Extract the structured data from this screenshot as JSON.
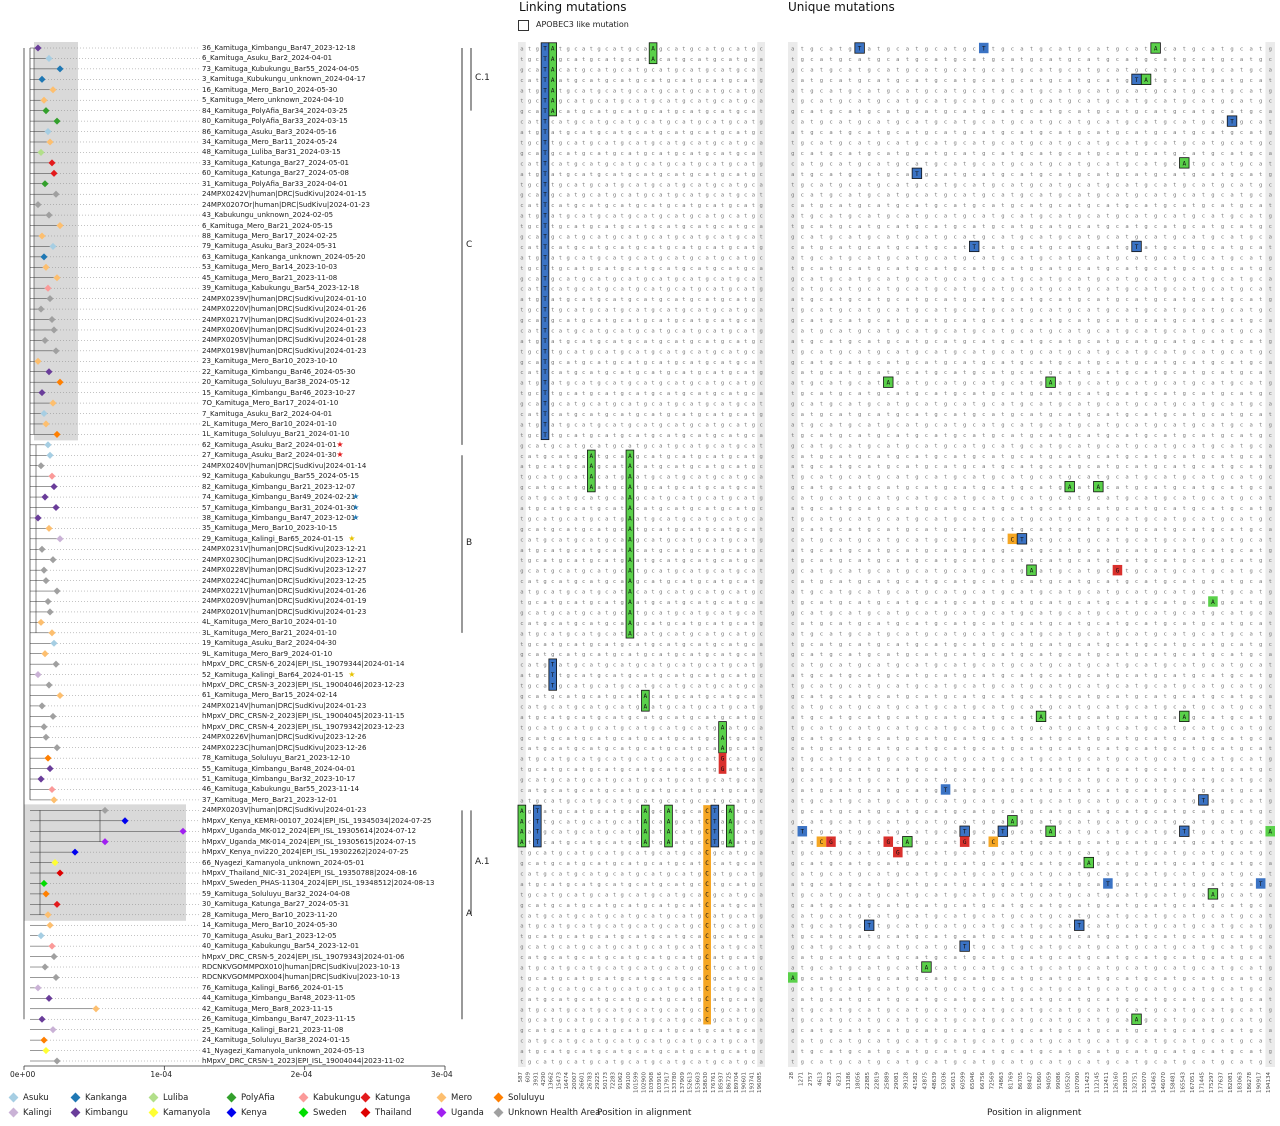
{
  "panels": {
    "linking_title": "Linking mutations",
    "unique_title": "Unique mutations",
    "xlabel_linking": "Position in alignment",
    "xlabel_unique": "Position in alignment",
    "apobec_label": "APOBEC3 like mutation"
  },
  "tree_axis": {
    "ticks": [
      "0e+00",
      "1e-04",
      "2e-04",
      "3e-04"
    ]
  },
  "clades": [
    {
      "label": "C.1",
      "from": 0,
      "to": 6
    },
    {
      "label": "C",
      "from": 0,
      "to": 38
    },
    {
      "label": "B",
      "from": 39,
      "to": 56
    },
    {
      "label": "A.1",
      "from": 73,
      "to": 83
    },
    {
      "label": "A",
      "from": 73,
      "to": 93
    }
  ],
  "leaves": [
    {
      "name": "36_Kamituga_Kimbangu_Bar47_2023-12-18",
      "region": "Kimbangu"
    },
    {
      "name": "6_Kamituga_Asuku_Bar2_2024-04-01",
      "region": "Asuku"
    },
    {
      "name": "73_Kamituga_Kubukungu_Bar55_2024-04-05",
      "region": "Kankanga"
    },
    {
      "name": "3_Kamituga_Kubukungu_unknown_2024-04-17",
      "region": "Kankanga"
    },
    {
      "name": "16_Kamituga_Mero_Bar10_2024-05-30",
      "region": "Mero"
    },
    {
      "name": "5_Kamituga_Mero_unknown_2024-04-10",
      "region": "Mero"
    },
    {
      "name": "84_Kamituga_PolyAfia_Bar34_2024-03-25",
      "region": "PolyAfia"
    },
    {
      "name": "80_Kamituga_PolyAfia_Bar33_2024-03-15",
      "region": "PolyAfia"
    },
    {
      "name": "86_Kamituga_Asuku_Bar3_2024-05-16",
      "region": "Asuku"
    },
    {
      "name": "34_Kamituga_Mero_Bar11_2024-05-24",
      "region": "Mero"
    },
    {
      "name": "48_Kamituga_Luliba_Bar31_2024-03-15",
      "region": "Luliba"
    },
    {
      "name": "33_Kamituga_Katunga_Bar27_2024-05-01",
      "region": "Katunga"
    },
    {
      "name": "60_Kamituga_Katunga_Bar27_2024-05-08",
      "region": "Katunga"
    },
    {
      "name": "31_Kamituga_PolyAfia_Bar33_2024-04-01",
      "region": "PolyAfia"
    },
    {
      "name": "24MPX0242V|human|DRC|SudKivu|2024-01-15",
      "region": "Unknown Health Area"
    },
    {
      "name": "24MPX0207Or|human|DRC|SudKivu|2024-01-23",
      "region": "Unknown Health Area"
    },
    {
      "name": "43_Kabukungu_unknown_2024-02-05",
      "region": "Unknown Health Area"
    },
    {
      "name": "6_Kamituga_Mero_Bar21_2024-05-15",
      "region": "Mero"
    },
    {
      "name": "88_Kamituga_Mero_Bar17_2024-02-25",
      "region": "Mero"
    },
    {
      "name": "79_Kamituga_Asuku_Bar3_2024-05-31",
      "region": "Asuku"
    },
    {
      "name": "63_Kamituga_Kankanga_unknown_2024-05-20",
      "region": "Kankanga"
    },
    {
      "name": "53_Kamituga_Mero_Bar14_2023-10-03",
      "region": "Mero"
    },
    {
      "name": "45_Kamituga_Mero_Bar21_2023-11-08",
      "region": "Mero"
    },
    {
      "name": "39_Kamituga_Kabukungu_Bar54_2023-12-18",
      "region": "Kabukungu"
    },
    {
      "name": "24MPX0239V|human|DRC|SudKivu|2024-01-10",
      "region": "Unknown Health Area"
    },
    {
      "name": "24MPX0220V|human|DRC|SudKivu|2024-01-26",
      "region": "Unknown Health Area"
    },
    {
      "name": "24MPX0217V|human|DRC|SudKivu|2024-01-23",
      "region": "Unknown Health Area"
    },
    {
      "name": "24MPX0206V|human|DRC|SudKivu|2024-01-23",
      "region": "Unknown Health Area"
    },
    {
      "name": "24MPX0205V|human|DRC|SudKivu|2024-01-28",
      "region": "Unknown Health Area"
    },
    {
      "name": "24MPX0198V|human|DRC|SudKivu|2024-01-23",
      "region": "Unknown Health Area"
    },
    {
      "name": "23_Kamituga_Mero_Bar10_2023-10-10",
      "region": "Mero"
    },
    {
      "name": "22_Kamituga_Kimbangu_Bar46_2024-05-30",
      "region": "Kimbangu"
    },
    {
      "name": "20_Kamituga_Soluluyu_Bar38_2024-05-12",
      "region": "Soluluyu"
    },
    {
      "name": "15_Kamituga_Kimbangu_Bar46_2023-10-27",
      "region": "Kimbangu"
    },
    {
      "name": "7O_Kamituga_Mero_Bar17_2024-01-10",
      "region": "Mero"
    },
    {
      "name": "7_Kamituga_Asuku_Bar2_2024-04-01",
      "region": "Asuku"
    },
    {
      "name": "2L_Kamituga_Mero_Bar10_2024-01-10",
      "region": "Mero"
    },
    {
      "name": "1L_Kamituga_Soluluyu_Bar21_2024-01-10",
      "region": "Soluluyu"
    },
    {
      "name": "62_Kamituga_Asuku_Bar2_2024-01-01",
      "region": "Asuku",
      "star": "red"
    },
    {
      "name": "27_Kamituga_Asuku_Bar2_2024-01-30",
      "region": "Asuku",
      "star": "red"
    },
    {
      "name": "24MPX0240V|human|DRC|SudKivu|2024-01-14",
      "region": "Unknown Health Area"
    },
    {
      "name": "92_Kamituga_Kabukungu_Bar55_2024-05-15",
      "region": "Kabukungu"
    },
    {
      "name": "82_Kamituga_Kimbangu_Bar21_2023-12-07",
      "region": "Kimbangu"
    },
    {
      "name": "74_Kamituga_Kimbangu_Bar49_2024-02-21",
      "region": "Kimbangu",
      "star": "blue"
    },
    {
      "name": "57_Kamituga_Kimbangu_Bar31_2024-01-30",
      "region": "Kimbangu",
      "star": "blue"
    },
    {
      "name": "38_Kamituga_Kimbangu_Bar47_2023-12-01",
      "region": "Kimbangu",
      "star": "blue"
    },
    {
      "name": "35_Kamituga_Mero_Bar10_2023-10-15",
      "region": "Mero"
    },
    {
      "name": "29_Kamituga_Kalingi_Bar65_2024-01-15",
      "region": "Kalingi",
      "star": "yellow"
    },
    {
      "name": "24MPX0231V|human|DRC|SudKivu|2023-12-21",
      "region": "Unknown Health Area"
    },
    {
      "name": "24MPX0230C|human|DRC|SudKivu|2023-12-21",
      "region": "Unknown Health Area"
    },
    {
      "name": "24MPX0228V|human|DRC|SudKivu|2023-12-27",
      "region": "Unknown Health Area"
    },
    {
      "name": "24MPX0224C|human|DRC|SudKivu|2023-12-25",
      "region": "Unknown Health Area"
    },
    {
      "name": "24MPX0221V|human|DRC|SudKivu|2024-01-26",
      "region": "Unknown Health Area"
    },
    {
      "name": "24MPX0209V|human|DRC|SudKivu|2024-01-19",
      "region": "Unknown Health Area"
    },
    {
      "name": "24MPX0201V|human|DRC|SudKivu|2024-01-23",
      "region": "Unknown Health Area"
    },
    {
      "name": "4L_Kamituga_Mero_Bar10_2024-01-10",
      "region": "Mero"
    },
    {
      "name": "3L_Kamituga_Mero_Bar21_2024-01-10",
      "region": "Mero"
    },
    {
      "name": "19_Kamituga_Asuku_Bar2_2024-04-30",
      "region": "Asuku"
    },
    {
      "name": "9L_Kamituga_Mero_Bar9_2024-01-10",
      "region": "Mero"
    },
    {
      "name": "hMpxV_DRC_CRSN-6_2024|EPI_ISL_19079344|2024-01-14",
      "region": "Unknown Health Area"
    },
    {
      "name": "52_Kamituga_Kalingi_Bar64_2024-01-15",
      "region": "Kalingi",
      "star": "yellow"
    },
    {
      "name": "hMpxV_DRC_CRSN-3_2023|EPI_ISL_19004046|2023-12-23",
      "region": "Unknown Health Area"
    },
    {
      "name": "61_Kamituga_Mero_Bar15_2024-02-14",
      "region": "Mero"
    },
    {
      "name": "24MPX0214V|human|DRC|SudKivu|2024-01-23",
      "region": "Unknown Health Area"
    },
    {
      "name": "hMpxV_DRC_CRSN-2_2023|EPI_ISL_19004045|2023-11-15",
      "region": "Unknown Health Area"
    },
    {
      "name": "hMpxV_DRC_CRSN-4_2023|EPI_ISL_19079342|2023-12-23",
      "region": "Unknown Health Area"
    },
    {
      "name": "24MPX0226V|human|DRC|SudKivu|2023-12-26",
      "region": "Unknown Health Area"
    },
    {
      "name": "24MPX0223C|human|DRC|SudKivu|2023-12-26",
      "region": "Unknown Health Area"
    },
    {
      "name": "78_Kamituga_Soluluyu_Bar21_2023-12-10",
      "region": "Soluluyu"
    },
    {
      "name": "55_Kamituga_Kimbangu_Bar48_2024-04-01",
      "region": "Kimbangu"
    },
    {
      "name": "51_Kamituga_Kimbangu_Bar32_2023-10-17",
      "region": "Kimbangu"
    },
    {
      "name": "46_Kamituga_Kabukungu_Bar55_2023-11-14",
      "region": "Kabukungu"
    },
    {
      "name": "37_Kamituga_Mero_Bar21_2023-12-01",
      "region": "Mero"
    },
    {
      "name": "24MPX0203V|human|DRC|SudKivu|2024-01-23",
      "region": "Unknown Health Area"
    },
    {
      "name": "hMpxV_Kenya_KEMRI-00107_2024|EPI_ISL_19345034|2024-07-25",
      "region": "Kenya"
    },
    {
      "name": "hMpxV_Uganda_MK-012_2024|EPI_ISL_19305614|2024-07-12",
      "region": "Uganda"
    },
    {
      "name": "hMpxV_Uganda_MK-014_2024|EPI_ISL_19305615|2024-07-15",
      "region": "Uganda"
    },
    {
      "name": "hMpxV_Kenya_nvi220_2024|EPI_ISL_19302262|2024-07-25",
      "region": "Kenya"
    },
    {
      "name": "66_Nyagezi_Kamanyola_unknown_2024-05-01",
      "region": "Kamanyola"
    },
    {
      "name": "hMpxV_Thailand_NIC-31_2024|EPI_ISL_19350788|2024-08-16",
      "region": "Thailand"
    },
    {
      "name": "hMpxV_Sweden_PHAS-11304_2024|EPI_ISL_19348512|2024-08-13",
      "region": "Sweden"
    },
    {
      "name": "59_Kamituga_Soluluyu_Bar32_2024-04-08",
      "region": "Soluluyu"
    },
    {
      "name": "30_Kamituga_Katunga_Bar27_2024-05-31",
      "region": "Katunga"
    },
    {
      "name": "28_Kamituga_Mero_Bar10_2023-11-20",
      "region": "Mero"
    },
    {
      "name": "14_Kamituga_Mero_Bar10_2024-05-30",
      "region": "Mero"
    },
    {
      "name": "70_Kamituga_Asuku_Bar1_2023-12-05",
      "region": "Asuku"
    },
    {
      "name": "40_Kamituga_Kabukungu_Bar54_2023-12-01",
      "region": "Kabukungu"
    },
    {
      "name": "hMpxV_DRC_CRSN-5_2024|EPI_ISL_19079343|2024-01-06",
      "region": "Unknown Health Area"
    },
    {
      "name": "RDCNKVGOMMPOX010|human|DRC|SudKivu|2023-10-13",
      "region": "Unknown Health Area"
    },
    {
      "name": "RDCNKVGOMMPOX004|human|DRC|SudKivu|2023-10-13",
      "region": "Unknown Health Area"
    },
    {
      "name": "76_Kamituga_Kalingi_Bar66_2024-01-15",
      "region": "Kalingi"
    },
    {
      "name": "44_Kamituga_Kimbangu_Bar48_2023-11-05",
      "region": "Kimbangu"
    },
    {
      "name": "42_Kamituga_Mero_Bar8_2023-11-15",
      "region": "Mero"
    },
    {
      "name": "26_Kamituga_Kimbangu_Bar47_2023-11-15",
      "region": "Kimbangu"
    },
    {
      "name": "25_Kamituga_Kalingi_Bar21_2023-11-08",
      "region": "Kalingi"
    },
    {
      "name": "24_Kamituga_Soluluyu_Bar38_2024-01-15",
      "region": "Soluluyu"
    },
    {
      "name": "41_Nyagezi_Kamanyola_unknown_2024-05-13",
      "region": "Kamanyola"
    },
    {
      "name": "hMpxV_DRC_CRSN-1_2023|EPI_ISL_19004044|2023-11-02",
      "region": "Unknown Health Area"
    }
  ],
  "legend": [
    {
      "label": "Asuku",
      "color": "#a6cee3"
    },
    {
      "label": "Kankanga",
      "color": "#1f78b4"
    },
    {
      "label": "Luliba",
      "color": "#b2df8a"
    },
    {
      "label": "PolyAfia",
      "color": "#33a02c"
    },
    {
      "label": "Kabukungu",
      "color": "#fb9a99"
    },
    {
      "label": "Katunga",
      "color": "#e31a1c"
    },
    {
      "label": "Mero",
      "color": "#fdbf6f"
    },
    {
      "label": "Soluluyu",
      "color": "#ff7f00"
    },
    {
      "label": "Kalingi",
      "color": "#cab2d6"
    },
    {
      "label": "Kimbangu",
      "color": "#6a3d9a"
    },
    {
      "label": "Kamanyola",
      "color": "#ffff33"
    },
    {
      "label": "Kenya",
      "color": "#0000ee"
    },
    {
      "label": "Sweden",
      "color": "#00dd00"
    },
    {
      "label": "Thailand",
      "color": "#dd0000"
    },
    {
      "label": "Uganda",
      "color": "#a020f0"
    },
    {
      "label": "Unknown Health Area",
      "color": "#a0a0a0"
    }
  ],
  "star_colors": {
    "red": "#e31a1c",
    "blue": "#1f78b4",
    "yellow": "#e6c200"
  },
  "linking_positions": [
    "587",
    "609",
    "3931",
    "4290",
    "13662",
    "15473",
    "16474",
    "20007",
    "26601",
    "26783",
    "29225",
    "50173",
    "72283",
    "91062",
    "99100",
    "101599",
    "102900",
    "103908",
    "103916",
    "117917",
    "133780",
    "137909",
    "152613",
    "153603",
    "158630",
    "176761",
    "185937",
    "186725",
    "189704",
    "190601",
    "193741",
    "196085"
  ],
  "unique_positions": [
    "28",
    "1271",
    "2757",
    "4613",
    "4623",
    "6231",
    "13186",
    "18056",
    "22885",
    "22819",
    "25889",
    "29081",
    "39128",
    "41582",
    "43875",
    "48639",
    "53036",
    "56013",
    "60599",
    "65046",
    "66756",
    "72569",
    "74863",
    "81769",
    "86705",
    "88427",
    "91860",
    "94059",
    "99086",
    "105520",
    "107090",
    "111423",
    "112145",
    "112411",
    "126160",
    "128033",
    "132751",
    "135070",
    "143463",
    "146070",
    "158481",
    "165543",
    "167051",
    "171445",
    "175297",
    "177637",
    "182081",
    "183063",
    "186278",
    "190917",
    "194134"
  ]
}
